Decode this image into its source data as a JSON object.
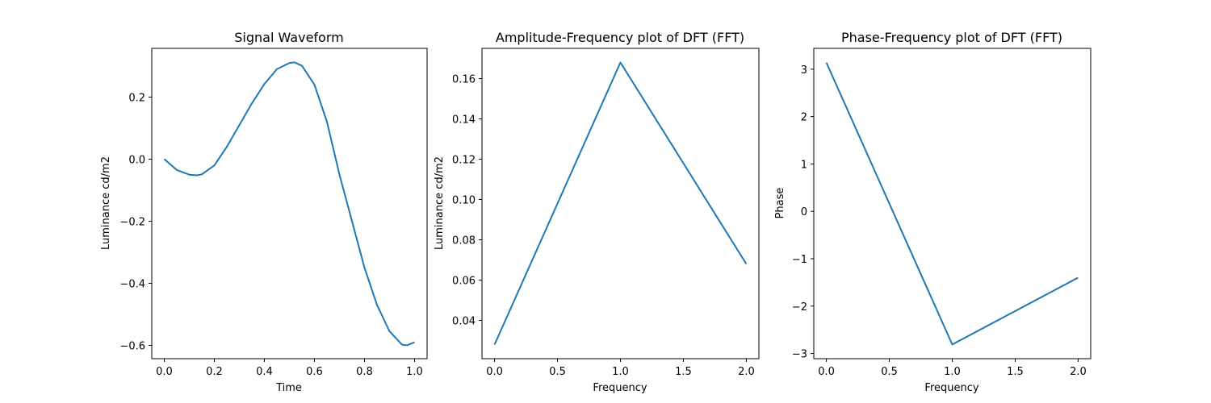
{
  "chart_data": [
    {
      "type": "line",
      "title": "Signal Waveform",
      "xlabel": "Time",
      "ylabel": "Luminance cd/m2",
      "xlim": [
        -0.05,
        1.05
      ],
      "ylim": [
        -0.643,
        0.357
      ],
      "xticks": [
        0.0,
        0.2,
        0.4,
        0.6,
        0.8,
        1.0
      ],
      "xtick_labels": [
        "0.0",
        "0.2",
        "0.4",
        "0.6",
        "0.8",
        "1.0"
      ],
      "yticks": [
        -0.6,
        -0.4,
        -0.2,
        0.0,
        0.2
      ],
      "ytick_labels": [
        "−0.6",
        "−0.4",
        "−0.2",
        "0.0",
        "0.2"
      ],
      "color": "#1f77b4",
      "series": [
        {
          "x": [
            0.0,
            0.05,
            0.1,
            0.13,
            0.15,
            0.2,
            0.25,
            0.3,
            0.35,
            0.4,
            0.45,
            0.5,
            0.52,
            0.55,
            0.6,
            0.65,
            0.7,
            0.75,
            0.8,
            0.85,
            0.9,
            0.95,
            0.97,
            1.0
          ],
          "y": [
            0.0,
            -0.035,
            -0.05,
            -0.052,
            -0.049,
            -0.02,
            0.04,
            0.11,
            0.18,
            0.242,
            0.29,
            0.31,
            0.312,
            0.301,
            0.24,
            0.12,
            -0.05,
            -0.2,
            -0.35,
            -0.47,
            -0.555,
            -0.598,
            -0.6,
            -0.59
          ]
        }
      ]
    },
    {
      "type": "line",
      "title": "Amplitude-Frequency plot of DFT (FFT)",
      "xlabel": "Frequency",
      "ylabel": "Luminance cd/m2",
      "xlim": [
        -0.1,
        2.1
      ],
      "ylim": [
        0.021,
        0.175
      ],
      "xticks": [
        0.0,
        0.5,
        1.0,
        1.5,
        2.0
      ],
      "xtick_labels": [
        "0.0",
        "0.5",
        "1.0",
        "1.5",
        "2.0"
      ],
      "yticks": [
        0.04,
        0.06,
        0.08,
        0.1,
        0.12,
        0.14,
        0.16
      ],
      "ytick_labels": [
        "0.04",
        "0.06",
        "0.08",
        "0.10",
        "0.12",
        "0.14",
        "0.16"
      ],
      "color": "#1f77b4",
      "series": [
        {
          "x": [
            0,
            1,
            2
          ],
          "y": [
            0.028,
            0.168,
            0.068
          ]
        }
      ]
    },
    {
      "type": "line",
      "title": "Phase-Frequency plot of DFT (FFT)",
      "xlabel": "Frequency",
      "ylabel": "Phase",
      "xlim": [
        -0.1,
        2.1
      ],
      "ylim": [
        -3.11,
        3.44
      ],
      "xticks": [
        0.0,
        0.5,
        1.0,
        1.5,
        2.0
      ],
      "xtick_labels": [
        "0.0",
        "0.5",
        "1.0",
        "1.5",
        "2.0"
      ],
      "yticks": [
        -3,
        -2,
        -1,
        0,
        1,
        2,
        3
      ],
      "ytick_labels": [
        "−3",
        "−2",
        "−1",
        "0",
        "1",
        "2",
        "3"
      ],
      "color": "#1f77b4",
      "series": [
        {
          "x": [
            0,
            1,
            2
          ],
          "y": [
            3.14,
            -2.81,
            -1.4
          ]
        }
      ]
    }
  ]
}
